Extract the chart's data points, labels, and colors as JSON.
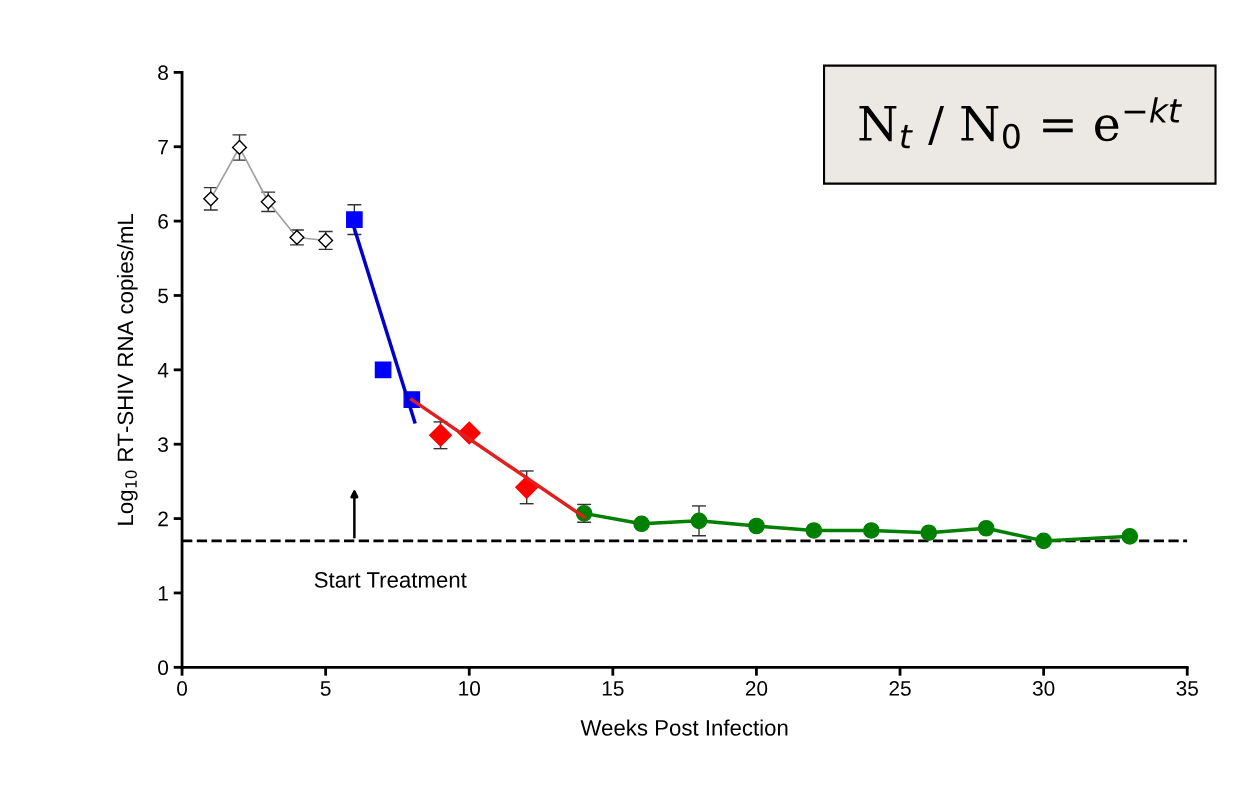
{
  "chart_data": {
    "type": "line",
    "xlabel": "Weeks Post Infection",
    "ylabel": "Log$_{10}$ RT-SHIV RNA copies/mL",
    "xlim": [
      0,
      35
    ],
    "xticks": [
      0,
      5,
      10,
      15,
      20,
      25,
      30,
      35
    ],
    "ylim": [
      0,
      8
    ],
    "yticks": [
      0,
      1,
      2,
      3,
      4,
      5,
      6,
      7,
      8
    ],
    "grid": false,
    "legend": false,
    "series": [
      {
        "color": "#a0a0a0",
        "marker": "diamond",
        "x": [
          1,
          2,
          3,
          4,
          5
        ],
        "values": [
          6.3,
          6.99,
          6.26,
          5.78,
          5.74
        ],
        "errors": [
          0.15,
          0.17,
          0.13,
          0.1,
          0.12
        ]
      },
      {
        "type": "scatter",
        "color": "#0000ff",
        "marker": "square",
        "x": [
          6,
          7,
          8
        ],
        "values": [
          6.02,
          4.0,
          3.6
        ],
        "errors": [
          0.2,
          null,
          null
        ]
      },
      {
        "color": "#0000cc",
        "marker": "none",
        "x": [
          6,
          8.1
        ],
        "values": [
          5.9,
          3.3
        ]
      },
      {
        "type": "scatter",
        "color": "#ff0000",
        "marker": "diamond",
        "x": [
          9,
          10,
          12
        ],
        "values": [
          3.12,
          3.15,
          2.42
        ],
        "errors": [
          0.18,
          null,
          0.22
        ]
      },
      {
        "color": "#e02020",
        "marker": "none",
        "x": [
          8,
          14
        ],
        "values": [
          3.6,
          2.02
        ]
      },
      {
        "color": "#008000",
        "marker": "circle",
        "x": [
          14,
          16,
          18,
          20,
          22,
          24,
          26,
          28,
          30,
          33
        ],
        "values": [
          2.07,
          1.93,
          1.97,
          1.9,
          1.84,
          1.84,
          1.81,
          1.87,
          1.7,
          1.76
        ],
        "errors": [
          0.12,
          null,
          0.2,
          null,
          null,
          null,
          null,
          null,
          null,
          null
        ]
      }
    ],
    "ref_lines": [
      {
        "axis": "y",
        "value": 1.7,
        "color": "#000000",
        "line_style": "dashed"
      }
    ],
    "annotations": [
      "Start Treatment",
      "N$_{t}$ / N$_{0}$ = e$^{−kt}$"
    ]
  }
}
